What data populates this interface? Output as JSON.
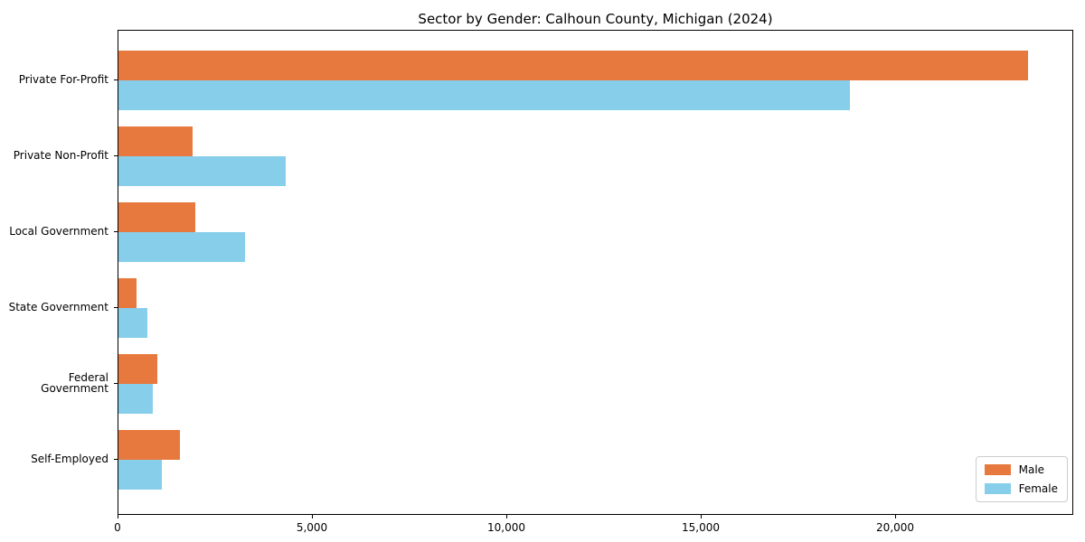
{
  "title": "Sector by Gender: Calhoun County, Michigan (2024)",
  "legend": {
    "items": [
      {
        "label": "Male",
        "color": "#E8793E"
      },
      {
        "label": "Female",
        "color": "#87CEEB"
      }
    ]
  },
  "chart_data": {
    "type": "bar",
    "orientation": "horizontal",
    "title": "Sector by Gender: Calhoun County, Michigan (2024)",
    "categories": [
      "Private For-Profit",
      "Private Non-Profit",
      "Local Government",
      "State Government",
      "Federal Government",
      "Self-Employed"
    ],
    "series": [
      {
        "name": "Male",
        "color": "#E8793E",
        "values": [
          23400,
          1910,
          1980,
          460,
          1000,
          1580
        ]
      },
      {
        "name": "Female",
        "color": "#87CEEB",
        "values": [
          18810,
          4300,
          3260,
          740,
          880,
          1120
        ]
      }
    ],
    "xlabel": "",
    "ylabel": "",
    "xlim": [
      0,
      24580
    ],
    "xticks": [
      0,
      5000,
      10000,
      15000,
      20000
    ],
    "xtick_labels": [
      "0",
      "5,000",
      "10,000",
      "15,000",
      "20,000"
    ],
    "grid": false,
    "legend_position": "lower right"
  }
}
